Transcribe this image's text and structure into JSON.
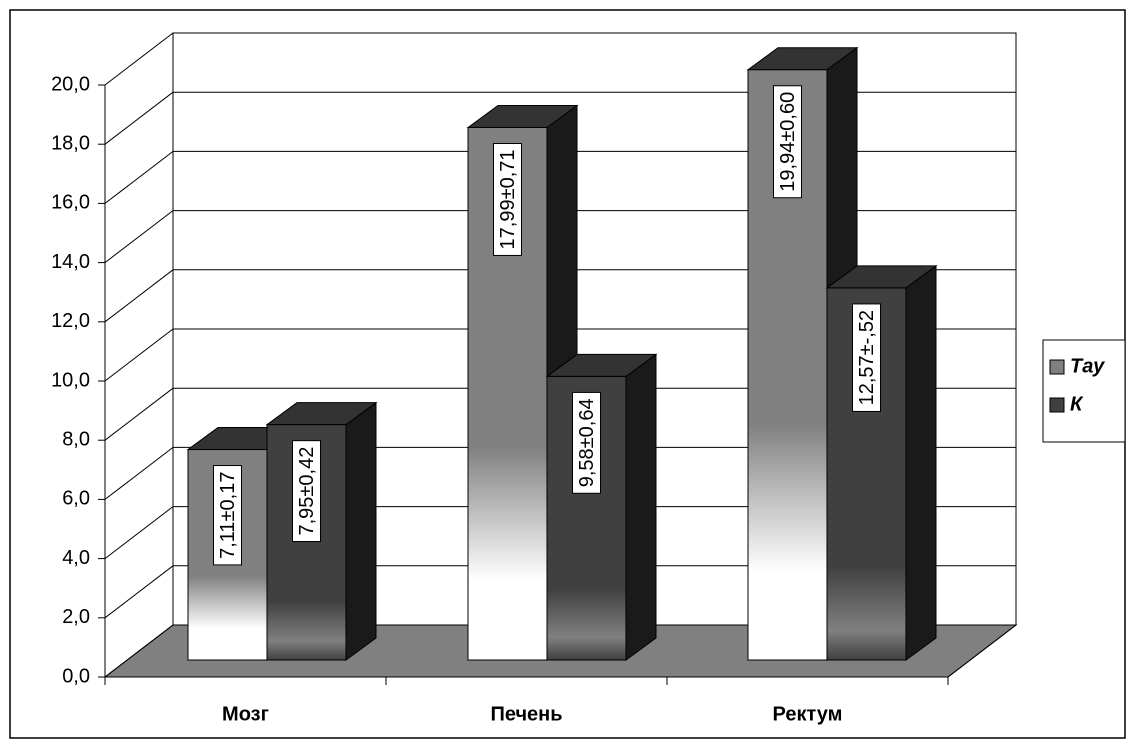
{
  "chart_data": {
    "type": "bar3d",
    "categories": [
      "Мозг",
      "Печень",
      "Ректум"
    ],
    "series": [
      {
        "name": "Тау",
        "color": "#808080",
        "values": [
          7.11,
          17.99,
          19.94
        ],
        "value_labels": [
          "7,11±0,17",
          "17,99±0,71",
          "19,94±0,60"
        ]
      },
      {
        "name": "К",
        "color": "#404040",
        "values": [
          7.95,
          9.58,
          12.57
        ],
        "value_labels": [
          "7,95±0,42",
          "9,58±0,64",
          "12,57±-,52"
        ]
      }
    ],
    "ylim": [
      0,
      20
    ],
    "yticks": [
      {
        "value": 0,
        "label": "0,0"
      },
      {
        "value": 2,
        "label": "2,0"
      },
      {
        "value": 4,
        "label": "4,0"
      },
      {
        "value": 6,
        "label": "6,0"
      },
      {
        "value": 8,
        "label": "8,0"
      },
      {
        "value": 10,
        "label": "10,0"
      },
      {
        "value": 12,
        "label": "12,0"
      },
      {
        "value": 14,
        "label": "14,0"
      },
      {
        "value": 16,
        "label": "16,0"
      },
      {
        "value": 18,
        "label": "18,0"
      },
      {
        "value": 20,
        "label": "20,0"
      }
    ],
    "grid": true,
    "legend": "right"
  }
}
